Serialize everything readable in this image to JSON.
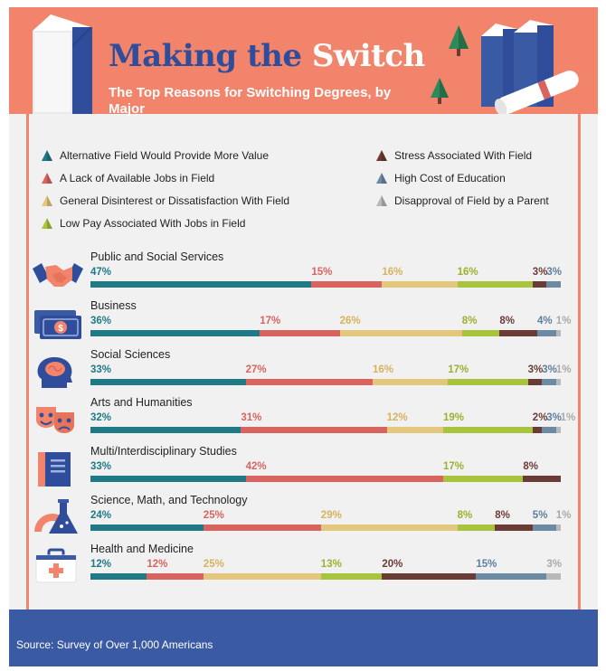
{
  "title": {
    "part1": "Making the",
    "part2": "Switch"
  },
  "subtitle": "The Top Reasons for Switching Degrees, by Major",
  "source": "Source: Survey of Over 1,000 Americans",
  "colors": {
    "banner": "#f1846a",
    "title_blue": "#2f4d9b",
    "footer": "#3a5aa3",
    "background": "#f1f1f2"
  },
  "chart_data": {
    "type": "bar",
    "stacked": true,
    "orientation": "horizontal",
    "series": [
      {
        "name": "Alternative Field Would Provide More Value",
        "color": "#1f7a86",
        "label_color": "#1f7a86"
      },
      {
        "name": "A Lack of Available Jobs in Field",
        "color": "#d9645f",
        "label_color": "#d9645f"
      },
      {
        "name": "General Disinterest or Dissatisfaction With Field",
        "color": "#e3c77d",
        "label_color": "#d6b35c"
      },
      {
        "name": "Low Pay Associated With Jobs in Field",
        "color": "#a8c43c",
        "label_color": "#9ab22e"
      },
      {
        "name": "Stress Associated With Field",
        "color": "#6b3b35",
        "label_color": "#6b3b35"
      },
      {
        "name": "High Cost of Education",
        "color": "#6d8aa3",
        "label_color": "#5e7f9c"
      },
      {
        "name": "Disapproval of Field by a Parent",
        "color": "#b9b9b9",
        "label_color": "#aaaaaa"
      }
    ],
    "categories": [
      "Public and Social Services",
      "Business",
      "Social Sciences",
      "Arts and Humanities",
      "Multi/Interdisciplinary Studies",
      "Science, Math, and Technology",
      "Health and Medicine"
    ],
    "values": [
      [
        47,
        15,
        16,
        16,
        3,
        3,
        null
      ],
      [
        36,
        17,
        26,
        8,
        8,
        4,
        1
      ],
      [
        33,
        27,
        16,
        17,
        3,
        3,
        1
      ],
      [
        32,
        31,
        12,
        19,
        2,
        3,
        1
      ],
      [
        33,
        42,
        null,
        17,
        8,
        null,
        null
      ],
      [
        24,
        25,
        29,
        8,
        8,
        5,
        1
      ],
      [
        12,
        12,
        25,
        13,
        20,
        15,
        3
      ]
    ],
    "labels": [
      [
        "47%",
        "15%",
        "16%",
        "16%",
        "3%",
        "3%",
        ""
      ],
      [
        "36%",
        "17%",
        "26%",
        "8%",
        "8%",
        "4%",
        "1%"
      ],
      [
        "33%",
        "27%",
        "16%",
        "17%",
        "3%",
        "3%",
        "1%"
      ],
      [
        "32%",
        "31%",
        "12%",
        "19%",
        "2%",
        "3%",
        "1%"
      ],
      [
        "33%",
        "42%",
        "",
        "17%",
        "8%",
        "",
        ""
      ],
      [
        "24%",
        "25%",
        "29%",
        "8%",
        "8%",
        "5%",
        "1%"
      ],
      [
        "12%",
        "12%",
        "25%",
        "13%",
        "20%",
        "15%",
        "3%"
      ]
    ],
    "icons": [
      "handshake-icon",
      "money-icon",
      "brain-head-icon",
      "theater-masks-icon",
      "book-icon",
      "science-tools-icon",
      "first-aid-kit-icon"
    ],
    "legend_position": "top"
  }
}
